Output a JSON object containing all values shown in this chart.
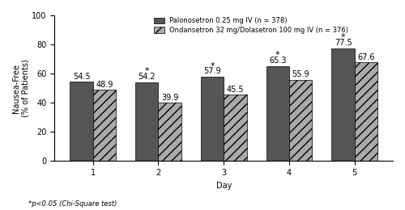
{
  "days": [
    1,
    2,
    3,
    4,
    5
  ],
  "palonosetron_values": [
    54.5,
    54.2,
    57.9,
    65.3,
    77.5
  ],
  "ondansetron_values": [
    48.9,
    39.9,
    45.5,
    55.9,
    67.6
  ],
  "palonosetron_color": "#555555",
  "ondansetron_color": "#aaaaaa",
  "palonosetron_label": "Palonosetron 0.25 mg IV (n = 378)",
  "ondansetron_label": "Ondansetron 32 mg/Dolasetron 100 mg IV (n = 376)",
  "xlabel": "Day",
  "ylabel": "Nausea-Free\n(% of Patients)",
  "ylim": [
    0,
    100
  ],
  "yticks": [
    0,
    20,
    40,
    60,
    80,
    100
  ],
  "significant_days": [
    2,
    3,
    4,
    5
  ],
  "footnote": "*p<0.05 (Chi-Square test)",
  "bar_width": 0.35,
  "label_fontsize": 7,
  "tick_fontsize": 7,
  "value_fontsize": 7
}
